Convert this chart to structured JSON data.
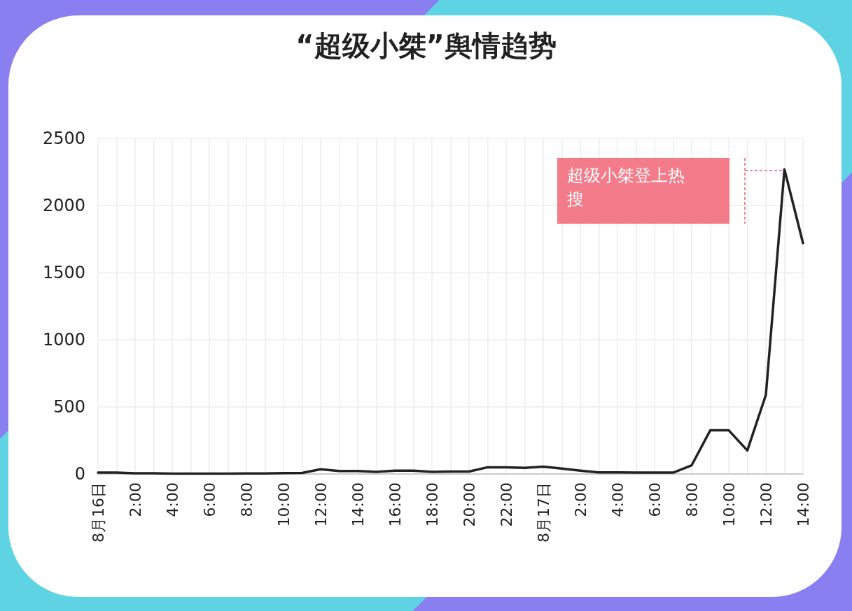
{
  "chart_data": {
    "type": "line",
    "title": "“超级小桀”舆情趋势",
    "categories": [
      "8月16日",
      null,
      "2:00",
      null,
      "4:00",
      null,
      "6:00",
      null,
      "8:00",
      null,
      "10:00",
      null,
      "12:00",
      null,
      "14:00",
      null,
      "16:00",
      null,
      "18:00",
      null,
      "20:00",
      null,
      "22:00",
      null,
      "8月17日",
      null,
      "2:00",
      null,
      "4:00",
      null,
      "6:00",
      null,
      "8:00",
      null,
      "10:00",
      null,
      "12:00",
      null,
      "14:00"
    ],
    "series": [
      {
        "color": "#222222",
        "values": [
          10,
          10,
          5,
          5,
          3,
          3,
          3,
          3,
          4,
          4,
          6,
          8,
          35,
          22,
          22,
          15,
          25,
          25,
          15,
          18,
          18,
          50,
          50,
          45,
          55,
          40,
          25,
          12,
          12,
          10,
          10,
          10,
          65,
          325,
          325,
          175,
          590,
          2270,
          1720
        ]
      }
    ],
    "ylim": [
      0,
      2500
    ],
    "yticks": [
      0,
      500,
      1000,
      1500,
      2000,
      2500
    ],
    "grid": true,
    "marker": "none",
    "line_style": "solid",
    "annotations": [
      "超级小桀登上热搜"
    ]
  }
}
